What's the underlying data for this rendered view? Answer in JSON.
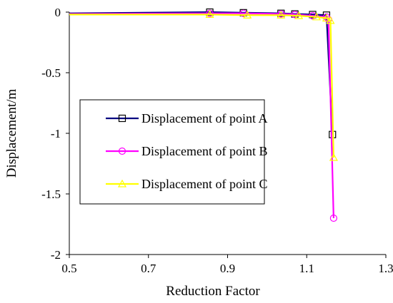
{
  "chart_data": {
    "type": "line",
    "title": "",
    "xlabel": "Reduction Factor",
    "ylabel": "Displacement/m",
    "xlim": [
      0.5,
      1.3
    ],
    "ylim": [
      -2,
      0
    ],
    "xticks": [
      0.5,
      0.7,
      0.9,
      1.1,
      1.3
    ],
    "xtick_labels": [
      "0.5",
      "0.7",
      "0.9",
      "1.1",
      "1.3"
    ],
    "yticks": [
      0,
      -0.5,
      -1,
      -1.5,
      -2
    ],
    "ytick_labels": [
      "0",
      "-0.5",
      "-1",
      "-1.5",
      "-2"
    ],
    "grid": false,
    "legend_position": "center-left",
    "series": [
      {
        "name": "Displacement of point A",
        "color": "#000080",
        "marker": "square",
        "x": [
          0.5,
          0.855,
          0.94,
          1.035,
          1.07,
          1.115,
          1.15,
          1.165
        ],
        "y": [
          -0.01,
          0.0,
          -0.005,
          -0.01,
          -0.015,
          -0.02,
          -0.025,
          -1.01
        ]
      },
      {
        "name": "Displacement of point B",
        "color": "#FF00FF",
        "marker": "circle",
        "x": [
          0.5,
          0.855,
          0.94,
          1.035,
          1.07,
          1.115,
          1.15,
          1.155,
          1.168
        ],
        "y": [
          -0.015,
          -0.01,
          -0.01,
          -0.015,
          -0.02,
          -0.03,
          -0.04,
          -0.06,
          -1.7
        ]
      },
      {
        "name": "Displacement of point C",
        "color": "#FFFF00",
        "marker": "triangle",
        "x": [
          0.5,
          0.855,
          0.95,
          1.035,
          1.08,
          1.125,
          1.15,
          1.16,
          1.168
        ],
        "y": [
          -0.02,
          -0.02,
          -0.025,
          -0.025,
          -0.03,
          -0.04,
          -0.05,
          -0.07,
          -1.2
        ]
      }
    ]
  }
}
